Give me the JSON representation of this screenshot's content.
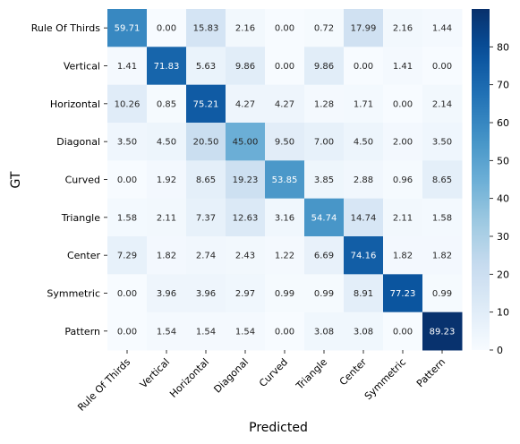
{
  "chart_data": {
    "type": "heatmap",
    "title": "",
    "xlabel": "Predicted",
    "ylabel": "GT",
    "x_categories": [
      "Rule Of Thirds",
      "Vertical",
      "Horizontal",
      "Diagonal",
      "Curved",
      "Triangle",
      "Center",
      "Symmetric",
      "Pattern"
    ],
    "y_categories": [
      "Rule Of Thirds",
      "Vertical",
      "Horizontal",
      "Diagonal",
      "Curved",
      "Triangle",
      "Center",
      "Symmetric",
      "Pattern"
    ],
    "values": [
      [
        59.71,
        0.0,
        15.83,
        2.16,
        0.0,
        0.72,
        17.99,
        2.16,
        1.44
      ],
      [
        1.41,
        71.83,
        5.63,
        9.86,
        0.0,
        9.86,
        0.0,
        1.41,
        0.0
      ],
      [
        10.26,
        0.85,
        75.21,
        4.27,
        4.27,
        1.28,
        1.71,
        0.0,
        2.14
      ],
      [
        3.5,
        4.5,
        20.5,
        45.0,
        9.5,
        7.0,
        4.5,
        2.0,
        3.5
      ],
      [
        0.0,
        1.92,
        8.65,
        19.23,
        53.85,
        3.85,
        2.88,
        0.96,
        8.65
      ],
      [
        1.58,
        2.11,
        7.37,
        12.63,
        3.16,
        54.74,
        14.74,
        2.11,
        1.58
      ],
      [
        7.29,
        1.82,
        2.74,
        2.43,
        1.22,
        6.69,
        74.16,
        1.82,
        1.82
      ],
      [
        0.0,
        3.96,
        3.96,
        2.97,
        0.99,
        0.99,
        8.91,
        77.23,
        0.99
      ],
      [
        0.0,
        1.54,
        1.54,
        1.54,
        0.0,
        3.08,
        3.08,
        0.0,
        89.23
      ]
    ],
    "colorbar": {
      "min": 0,
      "max": 90,
      "ticks": [
        0,
        10,
        20,
        30,
        40,
        50,
        60,
        70,
        80
      ],
      "colormap": "Blues"
    },
    "grid": false,
    "legend": "colorbar-right"
  }
}
